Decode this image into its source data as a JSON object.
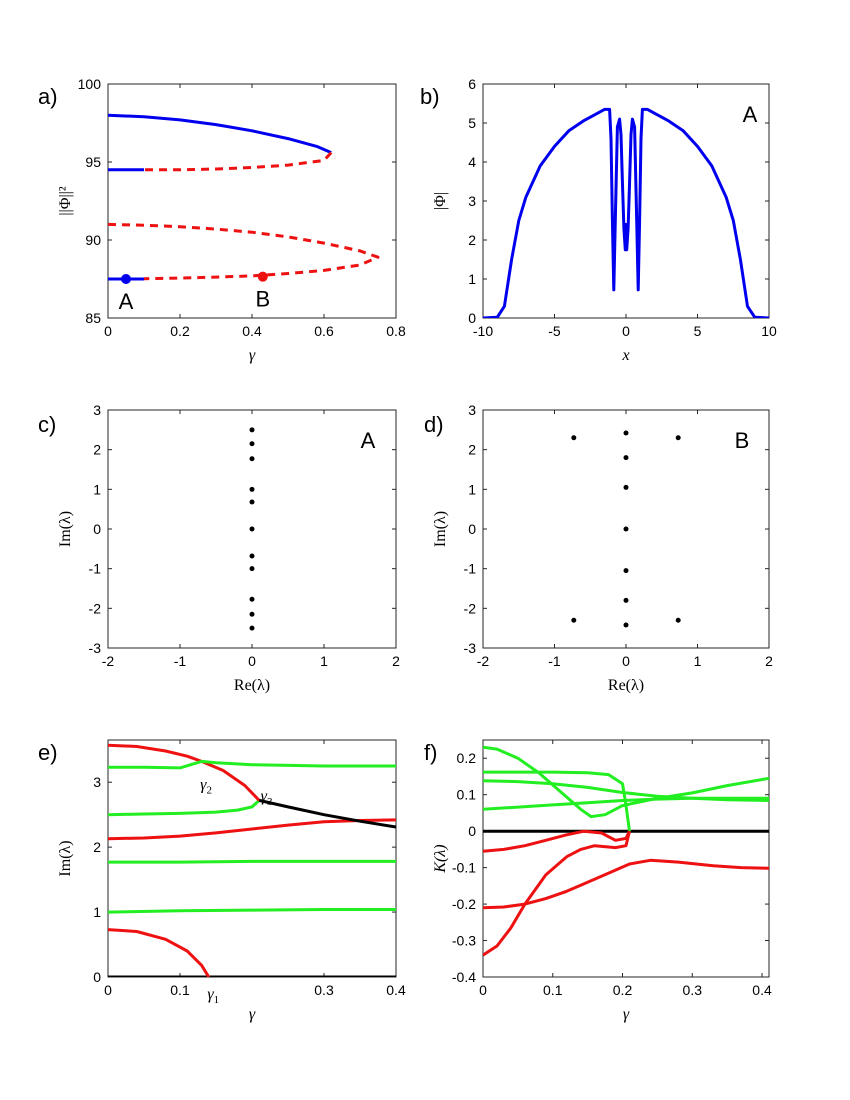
{
  "colors": {
    "stable": "#0000ee",
    "unstable": "#ee1111",
    "green": "#22ee22",
    "black": "#000000"
  },
  "chart_data": [
    {
      "id": "a",
      "panel_label": "a)",
      "type": "line",
      "xlabel": "γ",
      "ylabel": "||Φ||²",
      "xlim": [
        0,
        0.8
      ],
      "ylim": [
        85,
        100
      ],
      "xticks": [
        "0",
        "0.2",
        "0.4",
        "0.6",
        "0.8"
      ],
      "yticks": [
        "85",
        "90",
        "95",
        "100"
      ],
      "series": [
        {
          "name": "upper branch stable",
          "style": "solid",
          "color": "stable",
          "x": [
            0,
            0.1,
            0.2,
            0.3,
            0.4,
            0.5,
            0.58,
            0.62
          ],
          "y": [
            98.0,
            97.9,
            97.7,
            97.4,
            97.0,
            96.5,
            96.0,
            95.6
          ]
        },
        {
          "name": "upper branch unstable",
          "style": "dashed",
          "color": "unstable",
          "x": [
            0.62,
            0.6,
            0.5,
            0.4,
            0.3,
            0.2,
            0.1
          ],
          "y": [
            95.6,
            95.1,
            94.8,
            94.65,
            94.55,
            94.5,
            94.5
          ]
        },
        {
          "name": "second branch stable",
          "style": "solid",
          "color": "stable",
          "x": [
            0,
            0.1
          ],
          "y": [
            94.5,
            94.5
          ]
        },
        {
          "name": "second branch unstable",
          "style": "dashed",
          "color": "unstable",
          "x": [
            0.0,
            0.1,
            0.2,
            0.3,
            0.4,
            0.5,
            0.6,
            0.7,
            0.75,
            0.7,
            0.6,
            0.5,
            0.4,
            0.3,
            0.2,
            0.1
          ],
          "y": [
            91.0,
            90.95,
            90.85,
            90.7,
            90.5,
            90.2,
            89.8,
            89.3,
            88.9,
            88.4,
            88.05,
            87.85,
            87.7,
            87.62,
            87.56,
            87.52
          ]
        },
        {
          "name": "lower branch stable",
          "style": "solid",
          "color": "stable",
          "x": [
            0,
            0.1
          ],
          "y": [
            87.5,
            87.5
          ]
        }
      ],
      "points": [
        {
          "label": "A",
          "x": 0.05,
          "y": 87.5,
          "color": "stable"
        },
        {
          "label": "B",
          "x": 0.43,
          "y": 87.65,
          "color": "unstable"
        }
      ]
    },
    {
      "id": "b",
      "panel_label": "b)",
      "type": "line",
      "xlabel": "x",
      "ylabel": "|Φ|",
      "annotation": "A",
      "xlim": [
        -10,
        10
      ],
      "ylim": [
        0,
        6
      ],
      "xticks": [
        "-10",
        "-5",
        "0",
        "5",
        "10"
      ],
      "yticks": [
        "0",
        "1",
        "2",
        "3",
        "4",
        "5",
        "6"
      ],
      "series": [
        {
          "name": "profile",
          "color": "stable",
          "x": [
            -10,
            -9,
            -8.5,
            -8,
            -7.5,
            -7,
            -6,
            -5,
            -4,
            -3,
            -2,
            -1.5,
            -1.15,
            -1.05,
            -0.95,
            -0.85,
            -0.75,
            -0.6,
            -0.45,
            -0.35,
            -0.25,
            -0.15,
            -0.05,
            0,
            0.05,
            0.15,
            0.25,
            0.35,
            0.45,
            0.6,
            0.75,
            0.85,
            0.95,
            1.05,
            1.15,
            1.5,
            2,
            3,
            4,
            5,
            6,
            7,
            7.5,
            8,
            8.5,
            9,
            10
          ],
          "y": [
            0,
            0.02,
            0.3,
            1.5,
            2.5,
            3.1,
            3.9,
            4.4,
            4.8,
            5.05,
            5.25,
            5.35,
            5.35,
            4.6,
            2.5,
            0.72,
            2.5,
            4.9,
            5.1,
            4.7,
            3.5,
            2.3,
            1.75,
            2.4,
            1.75,
            2.3,
            3.5,
            4.7,
            5.1,
            4.9,
            2.5,
            0.72,
            2.5,
            4.6,
            5.35,
            5.35,
            5.25,
            5.05,
            4.8,
            4.4,
            3.9,
            3.1,
            2.5,
            1.5,
            0.3,
            0.02,
            0
          ]
        }
      ]
    },
    {
      "id": "c",
      "panel_label": "c)",
      "type": "scatter",
      "xlabel": "Re(λ)",
      "ylabel": "Im(λ)",
      "annotation": "A",
      "xlim": [
        -2,
        2
      ],
      "ylim": [
        -3,
        3
      ],
      "xticks": [
        "-2",
        "-1",
        "0",
        "1",
        "2"
      ],
      "yticks": [
        "-3",
        "-2",
        "-1",
        "0",
        "1",
        "2",
        "3"
      ],
      "points": [
        {
          "x": 0,
          "y": 2.5
        },
        {
          "x": 0,
          "y": 2.15
        },
        {
          "x": 0,
          "y": 1.77
        },
        {
          "x": 0,
          "y": 1.0
        },
        {
          "x": 0,
          "y": 0.68
        },
        {
          "x": 0,
          "y": 0.0
        },
        {
          "x": 0,
          "y": -0.68
        },
        {
          "x": 0,
          "y": -1.0
        },
        {
          "x": 0,
          "y": -1.77
        },
        {
          "x": 0,
          "y": -2.15
        },
        {
          "x": 0,
          "y": -2.5
        }
      ]
    },
    {
      "id": "d",
      "panel_label": "d)",
      "type": "scatter",
      "xlabel": "Re(λ)",
      "ylabel": "Im(λ)",
      "annotation": "B",
      "xlim": [
        -2,
        2
      ],
      "ylim": [
        -3,
        3
      ],
      "xticks": [
        "-2",
        "-1",
        "0",
        "1",
        "2"
      ],
      "yticks": [
        "-3",
        "-2",
        "-1",
        "0",
        "1",
        "2",
        "3"
      ],
      "points": [
        {
          "x": -0.73,
          "y": 2.3
        },
        {
          "x": 0,
          "y": 2.42
        },
        {
          "x": 0.73,
          "y": 2.3
        },
        {
          "x": 0,
          "y": 1.8
        },
        {
          "x": 0,
          "y": 1.05
        },
        {
          "x": 0,
          "y": 0.0
        },
        {
          "x": 0,
          "y": -1.05
        },
        {
          "x": 0,
          "y": -1.8
        },
        {
          "x": -0.73,
          "y": -2.3
        },
        {
          "x": 0,
          "y": -2.42
        },
        {
          "x": 0.73,
          "y": -2.3
        }
      ]
    },
    {
      "id": "e",
      "panel_label": "e)",
      "type": "line",
      "xlabel": "γ",
      "ylabel": "Im(λ)",
      "xlim": [
        0,
        0.4
      ],
      "ylim": [
        0,
        3.65
      ],
      "xticks": [
        "0",
        "0.1",
        "0.3",
        "0.4"
      ],
      "xtick_values": [
        0,
        0.1,
        0.3,
        0.4
      ],
      "yticks": [
        "0",
        "1",
        "2",
        "3"
      ],
      "markers": [
        {
          "label": "γ",
          "sub": "1",
          "x": 0.138,
          "y": -0.25
        },
        {
          "label": "γ",
          "sub": "2",
          "x": 0.128,
          "y": 2.98
        },
        {
          "label": "γ",
          "sub": "3",
          "x": 0.212,
          "y": 2.8
        }
      ],
      "series": [
        {
          "color": "black",
          "x": [
            0,
            0.4
          ],
          "y": [
            0,
            0
          ]
        },
        {
          "color": "unstable",
          "x": [
            0,
            0.04,
            0.08,
            0.11,
            0.13,
            0.14
          ],
          "y": [
            0.73,
            0.7,
            0.58,
            0.4,
            0.18,
            0.0
          ]
        },
        {
          "color": "green",
          "x": [
            0,
            0.1,
            0.2,
            0.3,
            0.4
          ],
          "y": [
            1.0,
            1.02,
            1.03,
            1.04,
            1.04
          ]
        },
        {
          "color": "green",
          "x": [
            0,
            0.1,
            0.2,
            0.3,
            0.4
          ],
          "y": [
            1.77,
            1.77,
            1.78,
            1.78,
            1.78
          ]
        },
        {
          "color": "unstable",
          "x": [
            0,
            0.05,
            0.1,
            0.15,
            0.2,
            0.25,
            0.3,
            0.35,
            0.4
          ],
          "y": [
            2.13,
            2.14,
            2.17,
            2.22,
            2.28,
            2.34,
            2.39,
            2.41,
            2.42
          ]
        },
        {
          "color": "green",
          "x": [
            0,
            0.05,
            0.1,
            0.15,
            0.18,
            0.2,
            0.21
          ],
          "y": [
            2.5,
            2.51,
            2.52,
            2.54,
            2.57,
            2.62,
            2.72
          ]
        },
        {
          "color": "unstable",
          "x": [
            0.13,
            0.16,
            0.19,
            0.21
          ],
          "y": [
            3.32,
            3.18,
            2.95,
            2.72
          ]
        },
        {
          "color": "black",
          "x": [
            0.21,
            0.25,
            0.3,
            0.35,
            0.4
          ],
          "y": [
            2.72,
            2.62,
            2.5,
            2.4,
            2.31
          ]
        },
        {
          "color": "unstable",
          "x": [
            0,
            0.04,
            0.08,
            0.11,
            0.13
          ],
          "y": [
            3.57,
            3.55,
            3.48,
            3.4,
            3.32
          ]
        },
        {
          "color": "green",
          "x": [
            0,
            0.05,
            0.1,
            0.13,
            0.15,
            0.2,
            0.3,
            0.4
          ],
          "y": [
            3.23,
            3.23,
            3.22,
            3.32,
            3.3,
            3.27,
            3.25,
            3.25
          ]
        }
      ]
    },
    {
      "id": "f",
      "panel_label": "f)",
      "type": "line",
      "xlabel": "γ",
      "ylabel": "K(λ)",
      "xlim": [
        0,
        0.41
      ],
      "ylim": [
        -0.4,
        0.25
      ],
      "xticks": [
        "0",
        "0.1",
        "0.2",
        "0.3",
        "0.4"
      ],
      "yticks": [
        "-0.4",
        "-0.3",
        "-0.2",
        "-0.1",
        "0",
        "0.1",
        "0.2"
      ],
      "series": [
        {
          "color": "black",
          "x": [
            0,
            0.41
          ],
          "y": [
            0,
            0
          ]
        },
        {
          "color": "green",
          "x": [
            0,
            0.02,
            0.05,
            0.08,
            0.11,
            0.14,
            0.155,
            0.175,
            0.2,
            0.25,
            0.3,
            0.35,
            0.41
          ],
          "y": [
            0.23,
            0.225,
            0.2,
            0.16,
            0.11,
            0.06,
            0.04,
            0.045,
            0.07,
            0.09,
            0.105,
            0.125,
            0.145
          ]
        },
        {
          "color": "green",
          "x": [
            0,
            0.05,
            0.1,
            0.15,
            0.18,
            0.2,
            0.205,
            0.21
          ],
          "y": [
            0.162,
            0.162,
            0.162,
            0.16,
            0.155,
            0.13,
            0.07,
            0.0
          ]
        },
        {
          "color": "green",
          "x": [
            0,
            0.05,
            0.1,
            0.15,
            0.2,
            0.25,
            0.3,
            0.35,
            0.41
          ],
          "y": [
            0.138,
            0.136,
            0.13,
            0.12,
            0.106,
            0.096,
            0.09,
            0.086,
            0.084
          ]
        },
        {
          "color": "green",
          "x": [
            0,
            0.05,
            0.1,
            0.15,
            0.2,
            0.25,
            0.3,
            0.35,
            0.41
          ],
          "y": [
            0.06,
            0.066,
            0.072,
            0.078,
            0.084,
            0.088,
            0.09,
            0.09,
            0.09
          ]
        },
        {
          "color": "unstable",
          "x": [
            0,
            0.03,
            0.06,
            0.09,
            0.12,
            0.145,
            0.17,
            0.19,
            0.205,
            0.21
          ],
          "y": [
            -0.055,
            -0.05,
            -0.04,
            -0.025,
            -0.01,
            0.0,
            -0.005,
            -0.025,
            -0.02,
            0.0
          ]
        },
        {
          "color": "unstable",
          "x": [
            0,
            0.03,
            0.06,
            0.09,
            0.12,
            0.15,
            0.18,
            0.21,
            0.24,
            0.28,
            0.33,
            0.37,
            0.41
          ],
          "y": [
            -0.21,
            -0.208,
            -0.2,
            -0.185,
            -0.165,
            -0.14,
            -0.115,
            -0.09,
            -0.08,
            -0.085,
            -0.095,
            -0.1,
            -0.102
          ]
        },
        {
          "color": "unstable",
          "x": [
            0,
            0.02,
            0.04,
            0.06,
            0.09,
            0.12,
            0.14,
            0.16,
            0.19,
            0.205,
            0.21
          ],
          "y": [
            -0.34,
            -0.315,
            -0.265,
            -0.2,
            -0.12,
            -0.07,
            -0.05,
            -0.04,
            -0.045,
            -0.04,
            0.0
          ]
        }
      ]
    }
  ]
}
